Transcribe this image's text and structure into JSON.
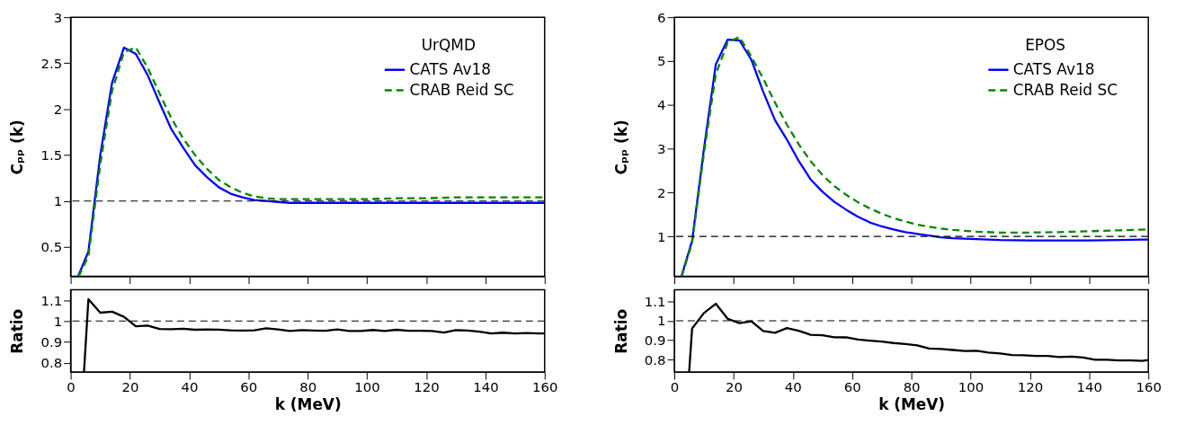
{
  "chart_data": [
    {
      "type": "line",
      "ylabel": "Cₚₚ (k)",
      "annotations": [
        "UrQMD"
      ],
      "xlim": [
        0,
        160
      ],
      "xticks": [
        0,
        20,
        40,
        60,
        80,
        100,
        120,
        140,
        160
      ],
      "ylim": [
        0.18,
        3
      ],
      "yticks": [
        0.5,
        1,
        1.5,
        2,
        2.5,
        3
      ],
      "tick_labels": "y",
      "legend": "top right",
      "grid": false,
      "ref_lines": [
        {
          "axis": "y",
          "value": 1,
          "color": "#000000",
          "line_style": "dashed"
        }
      ],
      "series": [
        {
          "name": "CATS Av18",
          "color": "#0000ff",
          "line_style": "solid",
          "x": [
            2.5,
            6,
            10,
            14,
            18,
            22,
            26,
            30,
            34,
            38,
            42,
            46,
            50,
            54,
            58,
            62,
            66,
            70,
            74,
            80,
            90,
            100,
            110,
            120,
            130,
            140,
            150,
            160
          ],
          "values": [
            0.18,
            0.45,
            1.5,
            2.29,
            2.67,
            2.6,
            2.37,
            2.07,
            1.78,
            1.58,
            1.39,
            1.26,
            1.15,
            1.08,
            1.04,
            1.01,
            1.0,
            0.99,
            0.98,
            0.98,
            0.98,
            0.98,
            0.98,
            0.98,
            0.98,
            0.98,
            0.98,
            0.98
          ]
        },
        {
          "name": "CRAB Reid SC",
          "color": "#008800",
          "line_style": "dashed",
          "x": [
            2.7,
            6,
            10,
            14,
            18,
            22,
            26,
            30,
            34,
            38,
            42,
            46,
            50,
            54,
            58,
            62,
            66,
            70,
            74,
            80,
            90,
            100,
            110,
            120,
            130,
            140,
            150,
            160
          ],
          "values": [
            0.18,
            0.4,
            1.4,
            2.2,
            2.62,
            2.67,
            2.45,
            2.17,
            1.9,
            1.68,
            1.5,
            1.35,
            1.23,
            1.15,
            1.09,
            1.05,
            1.03,
            1.02,
            1.02,
            1.02,
            1.02,
            1.02,
            1.03,
            1.03,
            1.04,
            1.04,
            1.04,
            1.04
          ]
        }
      ]
    },
    {
      "type": "line",
      "ylabel": "Cₚₚ (k)",
      "annotations": [
        "EPOS"
      ],
      "xlim": [
        0,
        160
      ],
      "xticks": [
        0,
        20,
        40,
        60,
        80,
        100,
        120,
        140,
        160
      ],
      "ylim": [
        0.09,
        6
      ],
      "yticks": [
        1,
        2,
        3,
        4,
        5,
        6
      ],
      "tick_labels": "y",
      "legend": "top right",
      "grid": false,
      "ref_lines": [
        {
          "axis": "y",
          "value": 1,
          "color": "#000000",
          "line_style": "dashed"
        }
      ],
      "series": [
        {
          "name": "CATS Av18",
          "color": "#0000ff",
          "line_style": "solid",
          "x": [
            2.4,
            6,
            10,
            14,
            18,
            22,
            26,
            30,
            34,
            38,
            42,
            46,
            50,
            54,
            58,
            62,
            66,
            70,
            74,
            78,
            82,
            86,
            90,
            94,
            98,
            102,
            110,
            120,
            130,
            140,
            150,
            160
          ],
          "values": [
            0.09,
            0.9,
            3.0,
            4.92,
            5.49,
            5.47,
            5.03,
            4.3,
            3.65,
            3.21,
            2.72,
            2.3,
            2.02,
            1.79,
            1.61,
            1.45,
            1.32,
            1.23,
            1.16,
            1.1,
            1.06,
            1.02,
            0.98,
            0.96,
            0.95,
            0.94,
            0.92,
            0.91,
            0.91,
            0.91,
            0.92,
            0.93
          ]
        },
        {
          "name": "CRAB Reid SC",
          "color": "#008800",
          "line_style": "dashed",
          "x": [
            2.5,
            6,
            10,
            14,
            18,
            22,
            26,
            30,
            34,
            38,
            42,
            46,
            50,
            54,
            58,
            62,
            66,
            70,
            74,
            78,
            82,
            86,
            90,
            94,
            98,
            102,
            110,
            120,
            130,
            140,
            150,
            160
          ],
          "values": [
            0.09,
            0.85,
            2.9,
            4.7,
            5.42,
            5.55,
            5.1,
            4.6,
            4.05,
            3.55,
            3.1,
            2.72,
            2.4,
            2.15,
            1.95,
            1.78,
            1.64,
            1.52,
            1.42,
            1.34,
            1.27,
            1.22,
            1.18,
            1.15,
            1.13,
            1.11,
            1.09,
            1.09,
            1.1,
            1.12,
            1.14,
            1.16
          ]
        }
      ]
    },
    {
      "type": "line",
      "xlabel": "k (MeV)",
      "ylabel": "Ratio",
      "xlim": [
        0,
        160
      ],
      "xticks": [
        0,
        20,
        40,
        60,
        80,
        100,
        120,
        140,
        160
      ],
      "ylim": [
        0.755,
        1.15
      ],
      "yticks": [
        0.8,
        0.9,
        1,
        1.1
      ],
      "grid": false,
      "ref_lines": [
        {
          "axis": "y",
          "value": 1,
          "color": "#000000",
          "line_style": "dashed"
        }
      ],
      "series": [
        {
          "color": "#000000",
          "line_style": "solid",
          "x": [
            4.5,
            6,
            10,
            14,
            18,
            22,
            26,
            30,
            34,
            38,
            42,
            46,
            50,
            54,
            58,
            62,
            66,
            70,
            74,
            78,
            82,
            86,
            90,
            94,
            98,
            102,
            106,
            110,
            114,
            118,
            122,
            126,
            130,
            134,
            138,
            142,
            146,
            150,
            154,
            158,
            160
          ],
          "values": [
            0.755,
            1.105,
            1.04,
            1.045,
            1.02,
            0.975,
            0.978,
            0.962,
            0.961,
            0.963,
            0.958,
            0.96,
            0.959,
            0.955,
            0.954,
            0.955,
            0.965,
            0.96,
            0.952,
            0.956,
            0.954,
            0.953,
            0.96,
            0.952,
            0.952,
            0.957,
            0.952,
            0.958,
            0.953,
            0.953,
            0.952,
            0.945,
            0.956,
            0.954,
            0.949,
            0.94,
            0.944,
            0.94,
            0.942,
            0.94,
            0.94
          ]
        }
      ]
    },
    {
      "type": "line",
      "xlabel": "k (MeV)",
      "ylabel": "Ratio",
      "xlim": [
        0,
        160
      ],
      "xticks": [
        0,
        20,
        40,
        60,
        80,
        100,
        120,
        140,
        160
      ],
      "ylim": [
        0.735,
        1.16
      ],
      "yticks": [
        0.8,
        0.9,
        1,
        1.1
      ],
      "grid": false,
      "ref_lines": [
        {
          "axis": "y",
          "value": 1,
          "color": "#000000",
          "line_style": "dashed"
        }
      ],
      "series": [
        {
          "color": "#000000",
          "line_style": "solid",
          "x": [
            5,
            6,
            10,
            14,
            18,
            22,
            26,
            30,
            34,
            38,
            42,
            46,
            50,
            54,
            58,
            62,
            66,
            70,
            74,
            78,
            82,
            86,
            90,
            94,
            98,
            102,
            106,
            110,
            114,
            118,
            122,
            126,
            130,
            134,
            138,
            142,
            146,
            150,
            154,
            158,
            160
          ],
          "values": [
            0.735,
            0.96,
            1.04,
            1.088,
            1.01,
            0.988,
            0.997,
            0.947,
            0.938,
            0.962,
            0.948,
            0.927,
            0.925,
            0.915,
            0.914,
            0.903,
            0.897,
            0.892,
            0.885,
            0.88,
            0.873,
            0.857,
            0.854,
            0.849,
            0.844,
            0.845,
            0.836,
            0.831,
            0.823,
            0.822,
            0.818,
            0.818,
            0.812,
            0.815,
            0.81,
            0.798,
            0.798,
            0.795,
            0.795,
            0.793,
            0.797
          ]
        }
      ]
    }
  ]
}
